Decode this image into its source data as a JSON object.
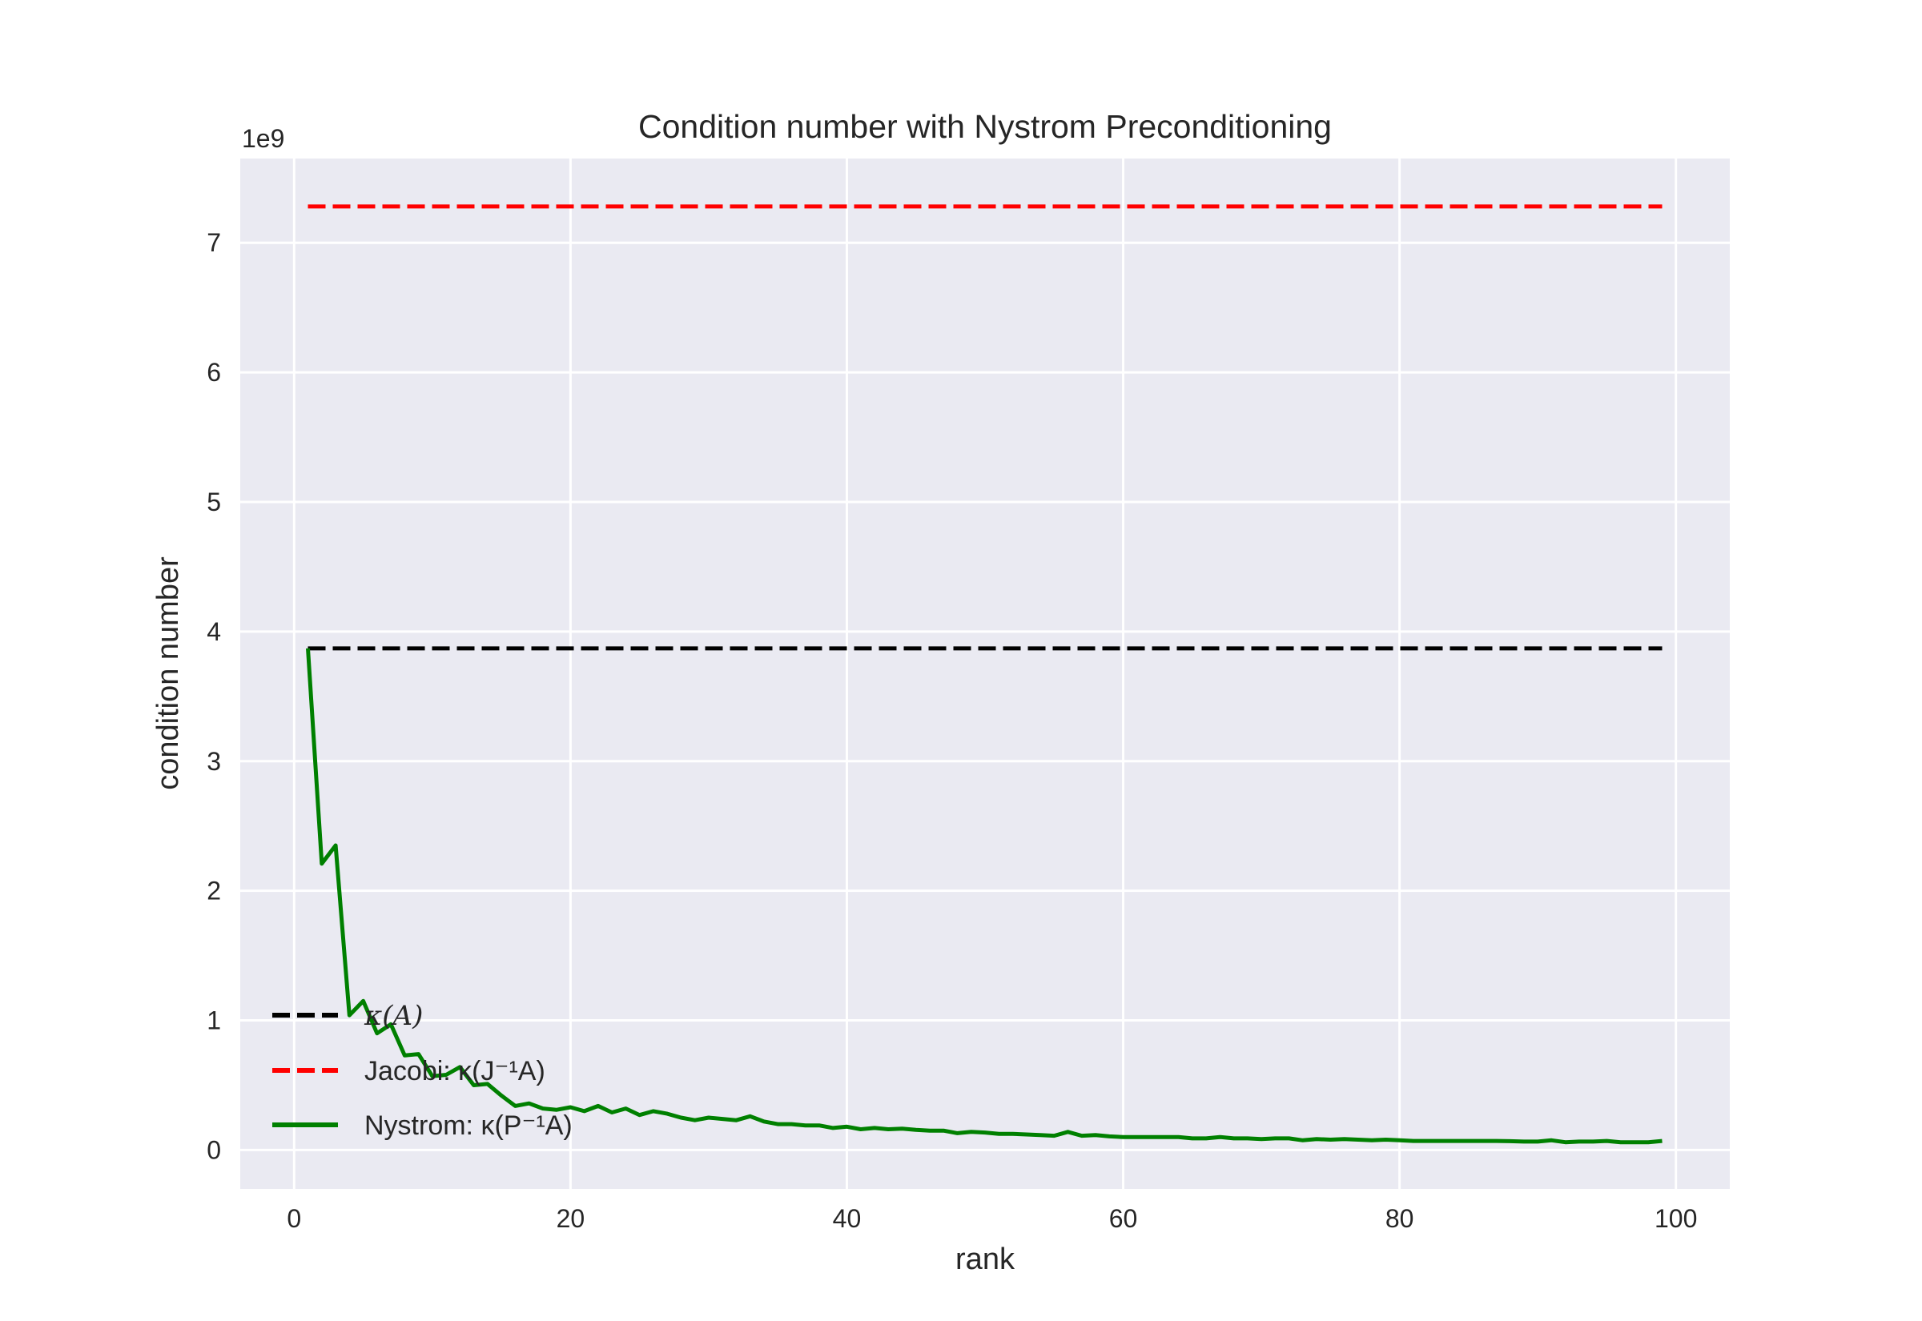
{
  "chart_data": {
    "type": "line",
    "title": "Condition number with Nystrom Preconditioning",
    "xlabel": "rank",
    "ylabel": "condition number",
    "y_offset_label": "1e9",
    "xlim": [
      -3.9,
      103.9
    ],
    "ylim": [
      -0.3,
      7.65
    ],
    "x_ticks": [
      0,
      20,
      40,
      60,
      80,
      100
    ],
    "x_tick_labels": [
      "0",
      "20",
      "40",
      "60",
      "80",
      "100"
    ],
    "y_ticks": [
      0,
      1,
      2,
      3,
      4,
      5,
      6,
      7
    ],
    "y_tick_labels": [
      "0",
      "1",
      "2",
      "3",
      "4",
      "5",
      "6",
      "7"
    ],
    "grid": true,
    "legend_position": "lower-left",
    "series": [
      {
        "name": "κ(A)",
        "color": "#000000",
        "style": "dashed",
        "x": [
          1,
          99
        ],
        "y": [
          3.87,
          3.87
        ]
      },
      {
        "name": "Jacobi: κ(J⁻¹A)",
        "color": "#ff0000",
        "style": "dashed",
        "x": [
          1,
          99
        ],
        "y": [
          7.28,
          7.28
        ]
      },
      {
        "name": "Nystrom: κ(P⁻¹A)",
        "color": "#008000",
        "style": "solid",
        "x": [
          1,
          2,
          3,
          4,
          5,
          6,
          7,
          8,
          9,
          10,
          11,
          12,
          13,
          14,
          15,
          16,
          17,
          18,
          19,
          20,
          21,
          22,
          23,
          24,
          25,
          26,
          27,
          28,
          29,
          30,
          31,
          32,
          33,
          34,
          35,
          36,
          37,
          38,
          39,
          40,
          41,
          42,
          43,
          44,
          45,
          46,
          47,
          48,
          49,
          50,
          51,
          52,
          53,
          54,
          55,
          56,
          57,
          58,
          59,
          60,
          61,
          62,
          63,
          64,
          65,
          66,
          67,
          68,
          69,
          70,
          71,
          72,
          73,
          74,
          75,
          76,
          77,
          78,
          79,
          80,
          81,
          82,
          83,
          84,
          85,
          86,
          87,
          88,
          89,
          90,
          91,
          92,
          93,
          94,
          95,
          96,
          97,
          98,
          99
        ],
        "y": [
          3.87,
          2.21,
          2.35,
          1.04,
          1.15,
          0.9,
          0.97,
          0.73,
          0.74,
          0.57,
          0.58,
          0.64,
          0.5,
          0.51,
          0.42,
          0.34,
          0.36,
          0.32,
          0.31,
          0.33,
          0.3,
          0.34,
          0.29,
          0.32,
          0.27,
          0.3,
          0.28,
          0.25,
          0.23,
          0.25,
          0.24,
          0.23,
          0.26,
          0.22,
          0.2,
          0.2,
          0.19,
          0.19,
          0.17,
          0.18,
          0.16,
          0.17,
          0.16,
          0.165,
          0.155,
          0.15,
          0.15,
          0.13,
          0.14,
          0.135,
          0.125,
          0.125,
          0.12,
          0.115,
          0.11,
          0.14,
          0.11,
          0.115,
          0.105,
          0.1,
          0.1,
          0.1,
          0.1,
          0.1,
          0.09,
          0.09,
          0.1,
          0.09,
          0.09,
          0.085,
          0.09,
          0.09,
          0.075,
          0.085,
          0.08,
          0.085,
          0.08,
          0.075,
          0.08,
          0.075,
          0.07,
          0.07,
          0.07,
          0.07,
          0.07,
          0.07,
          0.07,
          0.068,
          0.065,
          0.065,
          0.075,
          0.06,
          0.065,
          0.065,
          0.07,
          0.06,
          0.06,
          0.06,
          0.07
        ]
      }
    ]
  }
}
